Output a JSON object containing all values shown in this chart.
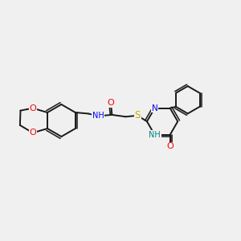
{
  "bg_color": "#f0f0f0",
  "bond_color": "#1a1a1a",
  "bond_width": 1.4,
  "atom_colors": {
    "O": "#ff0000",
    "N": "#0000ff",
    "S": "#ccaa00",
    "NH": "#008080",
    "H": "#1a1a1a",
    "C": "#1a1a1a"
  },
  "font_size": 7.0,
  "fig_size": [
    3.0,
    3.0
  ],
  "dpi": 100
}
